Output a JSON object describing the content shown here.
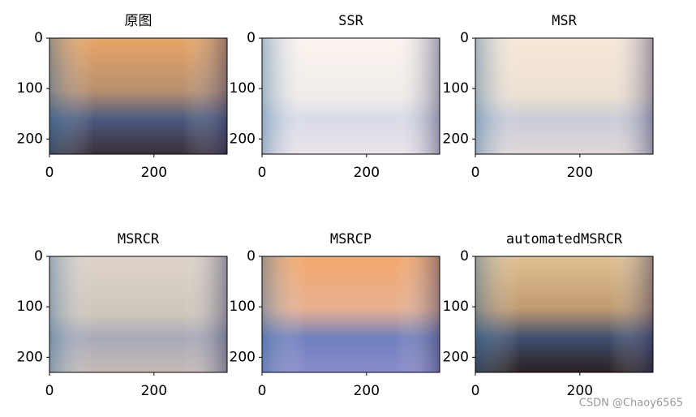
{
  "chart_data": [
    {
      "type": "image",
      "title": "原图",
      "xlim": [
        0,
        340
      ],
      "ylim": [
        230,
        0
      ],
      "xticks": [
        0,
        200
      ],
      "yticks": [
        0,
        100,
        200
      ]
    },
    {
      "type": "image",
      "title": "SSR",
      "xlim": [
        0,
        340
      ],
      "ylim": [
        230,
        0
      ],
      "xticks": [
        0,
        200
      ],
      "yticks": [
        0,
        100,
        200
      ]
    },
    {
      "type": "image",
      "title": "MSR",
      "xlim": [
        0,
        340
      ],
      "ylim": [
        230,
        0
      ],
      "xticks": [
        0,
        200
      ],
      "yticks": [
        0,
        100,
        200
      ]
    },
    {
      "type": "image",
      "title": "MSRCR",
      "xlim": [
        0,
        340
      ],
      "ylim": [
        230,
        0
      ],
      "xticks": [
        0,
        200
      ],
      "yticks": [
        0,
        100,
        200
      ]
    },
    {
      "type": "image",
      "title": "MSRCP",
      "xlim": [
        0,
        340
      ],
      "ylim": [
        230,
        0
      ],
      "xticks": [
        0,
        200
      ],
      "yticks": [
        0,
        100,
        200
      ]
    },
    {
      "type": "image",
      "title": "automatedMSRCR",
      "xlim": [
        0,
        340
      ],
      "ylim": [
        230,
        0
      ],
      "xticks": [
        0,
        200
      ],
      "yticks": [
        0,
        100,
        200
      ]
    }
  ],
  "watermark": "CSDN @Chaoy6565"
}
